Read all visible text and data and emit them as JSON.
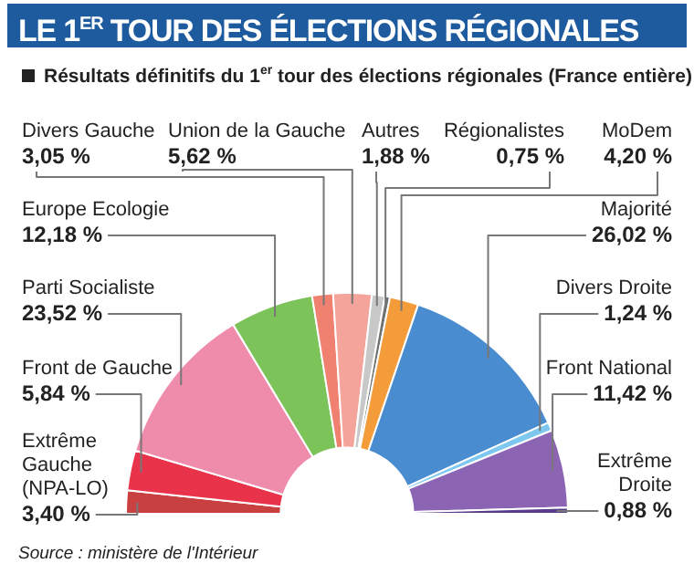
{
  "chart_data": {
    "type": "donut",
    "title": "LE 1$^{ER}$ TOUR DES ÉLECTIONS RÉGIONALES",
    "subtitle": "Résultats définitifs du 1$^{er}$ tour des élections régionales (France entière)",
    "categories": [
      "Extrême Gauche (NPA-LO)",
      "Front de Gauche",
      "Parti Socialiste",
      "Europe Ecologie",
      "Divers Gauche",
      "Union de la Gauche",
      "Autres",
      "Régionalistes",
      "MoDem",
      "Majorité",
      "Divers Droite",
      "Front National",
      "Extrême Droite"
    ],
    "values": [
      3.4,
      5.84,
      23.52,
      12.18,
      3.05,
      5.62,
      1.88,
      0.75,
      4.2,
      26.02,
      1.24,
      11.42,
      0.88
    ],
    "value_labels": [
      "3,40 %",
      "5,84 %",
      "23,52 %",
      "12,18 %",
      "3,05 %",
      "5,62 %",
      "1,88 %",
      "0,75 %",
      "4,20 %",
      "26,02 %",
      "1,24 %",
      "11,42 %",
      "0,88 %"
    ],
    "colors": [
      "#c8403f",
      "#e8334a",
      "#f08cab",
      "#7cc35a",
      "#f08070",
      "#f4a49a",
      "#c8c8c8",
      "#707070",
      "#f49c3a",
      "#4a8cd0",
      "#7ec8f0",
      "#8c64b4",
      "#5a3c8c"
    ],
    "annotations": [
      "Source : ministère de l'Intérieur"
    ]
  }
}
